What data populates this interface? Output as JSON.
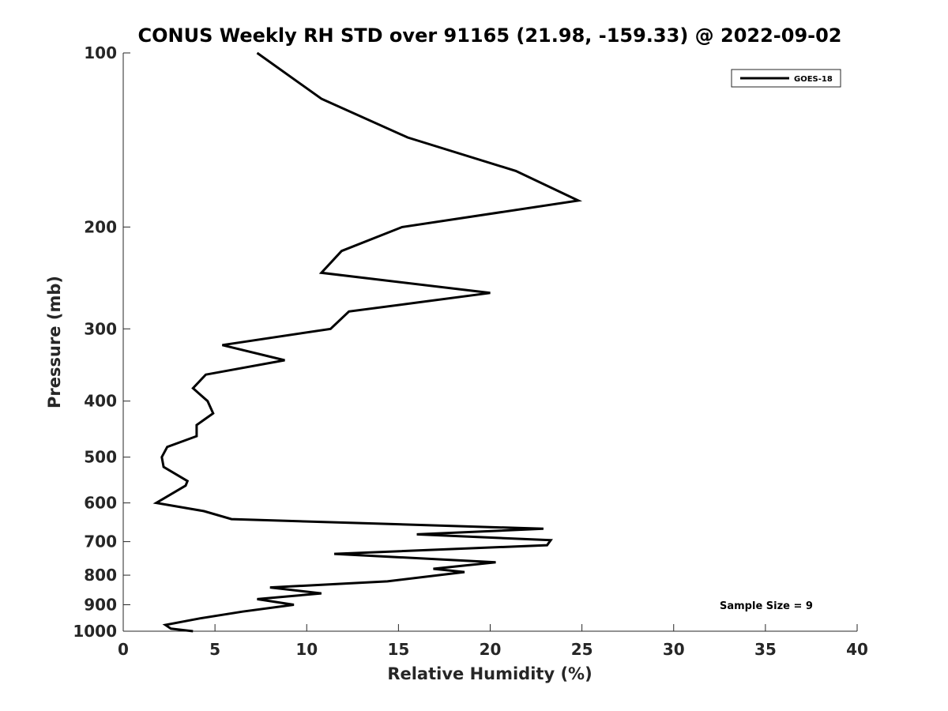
{
  "chart_data": {
    "type": "line",
    "title": "CONUS Weekly RH STD over 91165 (21.98, -159.33) @ 2022-09-02",
    "xlabel": "Relative Humidity (%)",
    "ylabel": "Pressure (mb)",
    "xlim": [
      0,
      40
    ],
    "ylim": [
      100,
      1000
    ],
    "yscale": "log",
    "reverse_y": true,
    "grid": false,
    "x_ticks": [
      0,
      5,
      10,
      15,
      20,
      25,
      30,
      35,
      40
    ],
    "x_tick_labels": [
      "0",
      "5",
      "10",
      "15",
      "20",
      "25",
      "30",
      "35",
      "40"
    ],
    "y_ticks": [
      100,
      200,
      300,
      400,
      500,
      600,
      700,
      800,
      900,
      1000
    ],
    "y_tick_labels": [
      "100",
      "200",
      "300",
      "400",
      "500",
      "600",
      "700",
      "800",
      "900",
      "1000"
    ],
    "legend_position": "top-right",
    "annotation": "Sample Size = 9",
    "series": [
      {
        "name": "GOES-18",
        "color": "#000000",
        "points": [
          [
            7.3,
            100
          ],
          [
            10.8,
            120
          ],
          [
            15.5,
            140
          ],
          [
            21.4,
            160
          ],
          [
            24.8,
            180
          ],
          [
            15.2,
            200
          ],
          [
            11.9,
            220
          ],
          [
            10.8,
            240
          ],
          [
            20.0,
            260
          ],
          [
            12.3,
            280
          ],
          [
            11.3,
            300
          ],
          [
            5.4,
            320
          ],
          [
            8.8,
            340
          ],
          [
            4.5,
            360
          ],
          [
            3.8,
            380
          ],
          [
            4.6,
            400
          ],
          [
            4.9,
            420
          ],
          [
            4.0,
            440
          ],
          [
            4.0,
            460
          ],
          [
            2.4,
            480
          ],
          [
            2.1,
            500
          ],
          [
            2.2,
            520
          ],
          [
            3.5,
            550
          ],
          [
            3.4,
            560
          ],
          [
            1.8,
            600
          ],
          [
            4.4,
            620
          ],
          [
            5.9,
            640
          ],
          [
            22.9,
            665
          ],
          [
            16.0,
            680
          ],
          [
            23.3,
            696
          ],
          [
            23.1,
            710
          ],
          [
            11.5,
            735
          ],
          [
            20.3,
            760
          ],
          [
            16.9,
            780
          ],
          [
            18.6,
            790
          ],
          [
            14.4,
            820
          ],
          [
            8.0,
            840
          ],
          [
            10.8,
            860
          ],
          [
            7.3,
            880
          ],
          [
            9.3,
            900
          ],
          [
            6.5,
            925
          ],
          [
            4.2,
            950
          ],
          [
            2.3,
            975
          ],
          [
            2.6,
            990
          ],
          [
            3.8,
            1000
          ]
        ]
      }
    ]
  }
}
